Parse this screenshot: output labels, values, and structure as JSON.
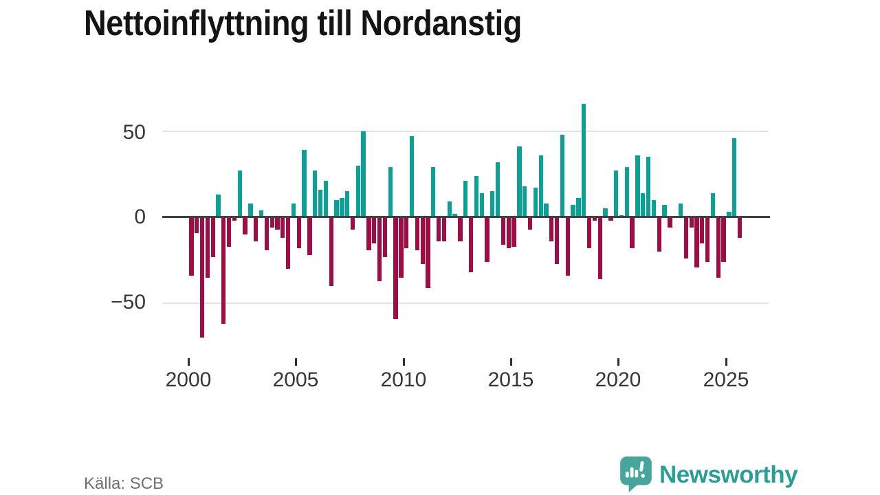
{
  "title": "Nettoinflyttning till Nordanstig",
  "source": "Källa: SCB",
  "brand": {
    "name": "Newsworthy",
    "icon": "speech-bubble-bar-chart-icon"
  },
  "colors": {
    "positive": "#0aa296",
    "negative": "#a00d45",
    "brand_teal": "#46a69d",
    "wordmark_teal": "#2b9e95",
    "zero_line": "#404040",
    "gridline": "#e3e3e3",
    "axis_text": "#363636",
    "source_text": "#6f6f7a",
    "title_text": "#141414"
  },
  "chart_data": {
    "type": "bar",
    "title": "Nettoinflyttning till Nordanstig",
    "xlabel": "",
    "ylabel": "",
    "ylim": [
      -75,
      70
    ],
    "grid": "horizontal",
    "legend": "none",
    "y_tick_labels": [
      "50",
      "0",
      "−50"
    ],
    "y_tick_values": [
      50,
      0,
      -50
    ],
    "x_tick_labels": [
      "2000",
      "2005",
      "2010",
      "2015",
      "2020",
      "2025"
    ],
    "period": "quarterly",
    "quarters": [
      "2000Q1",
      "2000Q2",
      "2000Q3",
      "2000Q4",
      "2001Q1",
      "2001Q2",
      "2001Q3",
      "2001Q4",
      "2002Q1",
      "2002Q2",
      "2002Q3",
      "2002Q4",
      "2003Q1",
      "2003Q2",
      "2003Q3",
      "2003Q4",
      "2004Q1",
      "2004Q2",
      "2004Q3",
      "2004Q4",
      "2005Q1",
      "2005Q2",
      "2005Q3",
      "2005Q4",
      "2006Q1",
      "2006Q2",
      "2006Q3",
      "2006Q4",
      "2007Q1",
      "2007Q2",
      "2007Q3",
      "2007Q4",
      "2008Q1",
      "2008Q2",
      "2008Q3",
      "2008Q4",
      "2009Q1",
      "2009Q2",
      "2009Q3",
      "2009Q4",
      "2010Q1",
      "2010Q2",
      "2010Q3",
      "2010Q4",
      "2011Q1",
      "2011Q2",
      "2011Q3",
      "2011Q4",
      "2012Q1",
      "2012Q2",
      "2012Q3",
      "2012Q4",
      "2013Q1",
      "2013Q2",
      "2013Q3",
      "2013Q4",
      "2014Q1",
      "2014Q2",
      "2014Q3",
      "2014Q4",
      "2015Q1",
      "2015Q2",
      "2015Q3",
      "2015Q4",
      "2016Q1",
      "2016Q2",
      "2016Q3",
      "2016Q4",
      "2017Q1",
      "2017Q2",
      "2017Q3",
      "2017Q4",
      "2018Q1",
      "2018Q2",
      "2018Q3",
      "2018Q4",
      "2019Q1",
      "2019Q2",
      "2019Q3",
      "2019Q4",
      "2020Q1",
      "2020Q2",
      "2020Q3",
      "2020Q4",
      "2021Q1",
      "2021Q2",
      "2021Q3",
      "2021Q4",
      "2022Q1",
      "2022Q2",
      "2022Q3",
      "2022Q4",
      "2023Q1",
      "2023Q2",
      "2023Q3",
      "2023Q4",
      "2024Q1",
      "2024Q2",
      "2024Q3",
      "2024Q4",
      "2025Q1",
      "2025Q2",
      "2025Q3"
    ],
    "values": [
      -34,
      -9,
      -70,
      -35,
      -23,
      13,
      -62,
      -17,
      -2,
      27,
      -10,
      8,
      -14,
      4,
      -19,
      -6,
      -7,
      -12,
      -30,
      8,
      -18,
      39,
      -22,
      27,
      16,
      21,
      -40,
      10,
      11,
      15,
      -7,
      30,
      50,
      -19,
      -15,
      -37,
      -23,
      29,
      -59,
      -35,
      -18,
      47,
      -19,
      -27,
      -41,
      29,
      -14,
      -14,
      9,
      2,
      -14,
      21,
      -32,
      24,
      14,
      -26,
      15,
      32,
      -16,
      -18,
      -17,
      41,
      18,
      -7,
      17,
      36,
      8,
      -14,
      -27,
      48,
      -34,
      7,
      11,
      66,
      -18,
      -2,
      -36,
      5,
      -2,
      27,
      1,
      29,
      -18,
      36,
      14,
      35,
      10,
      -20,
      7,
      -6,
      0,
      8,
      -24,
      -6,
      -29,
      -15,
      -26,
      14,
      -35,
      -26,
      3,
      46,
      -12
    ]
  }
}
